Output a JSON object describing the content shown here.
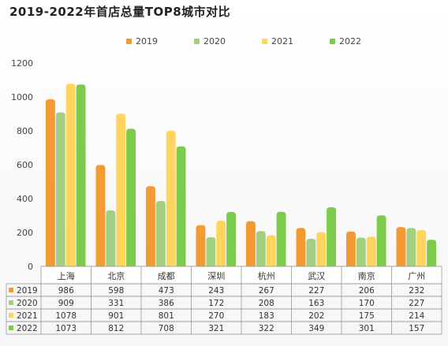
{
  "title": "2019-2022年首店总量TOP8城市对比",
  "chart_data": {
    "type": "bar",
    "title": "2019-2022年首店总量TOP8城市对比",
    "categories": [
      "上海",
      "北京",
      "成都",
      "深圳",
      "杭州",
      "武汉",
      "南京",
      "广州"
    ],
    "series": [
      {
        "name": "2019",
        "color": "#f39a32",
        "values": [
          986,
          598,
          473,
          243,
          267,
          227,
          206,
          232
        ]
      },
      {
        "name": "2020",
        "color": "#a3cf82",
        "values": [
          909,
          331,
          386,
          172,
          208,
          163,
          170,
          227
        ]
      },
      {
        "name": "2021",
        "color": "#ffd55f",
        "values": [
          1078,
          901,
          801,
          270,
          183,
          202,
          175,
          214
        ]
      },
      {
        "name": "2022",
        "color": "#7ccb4a",
        "values": [
          1073,
          812,
          708,
          321,
          322,
          349,
          301,
          157
        ]
      }
    ],
    "ylim": [
      0,
      1200
    ],
    "yticks": [
      "0",
      "200",
      "400",
      "600",
      "800",
      "1000",
      "1200"
    ],
    "grid": false,
    "legend": "top-center",
    "data_table": true
  }
}
